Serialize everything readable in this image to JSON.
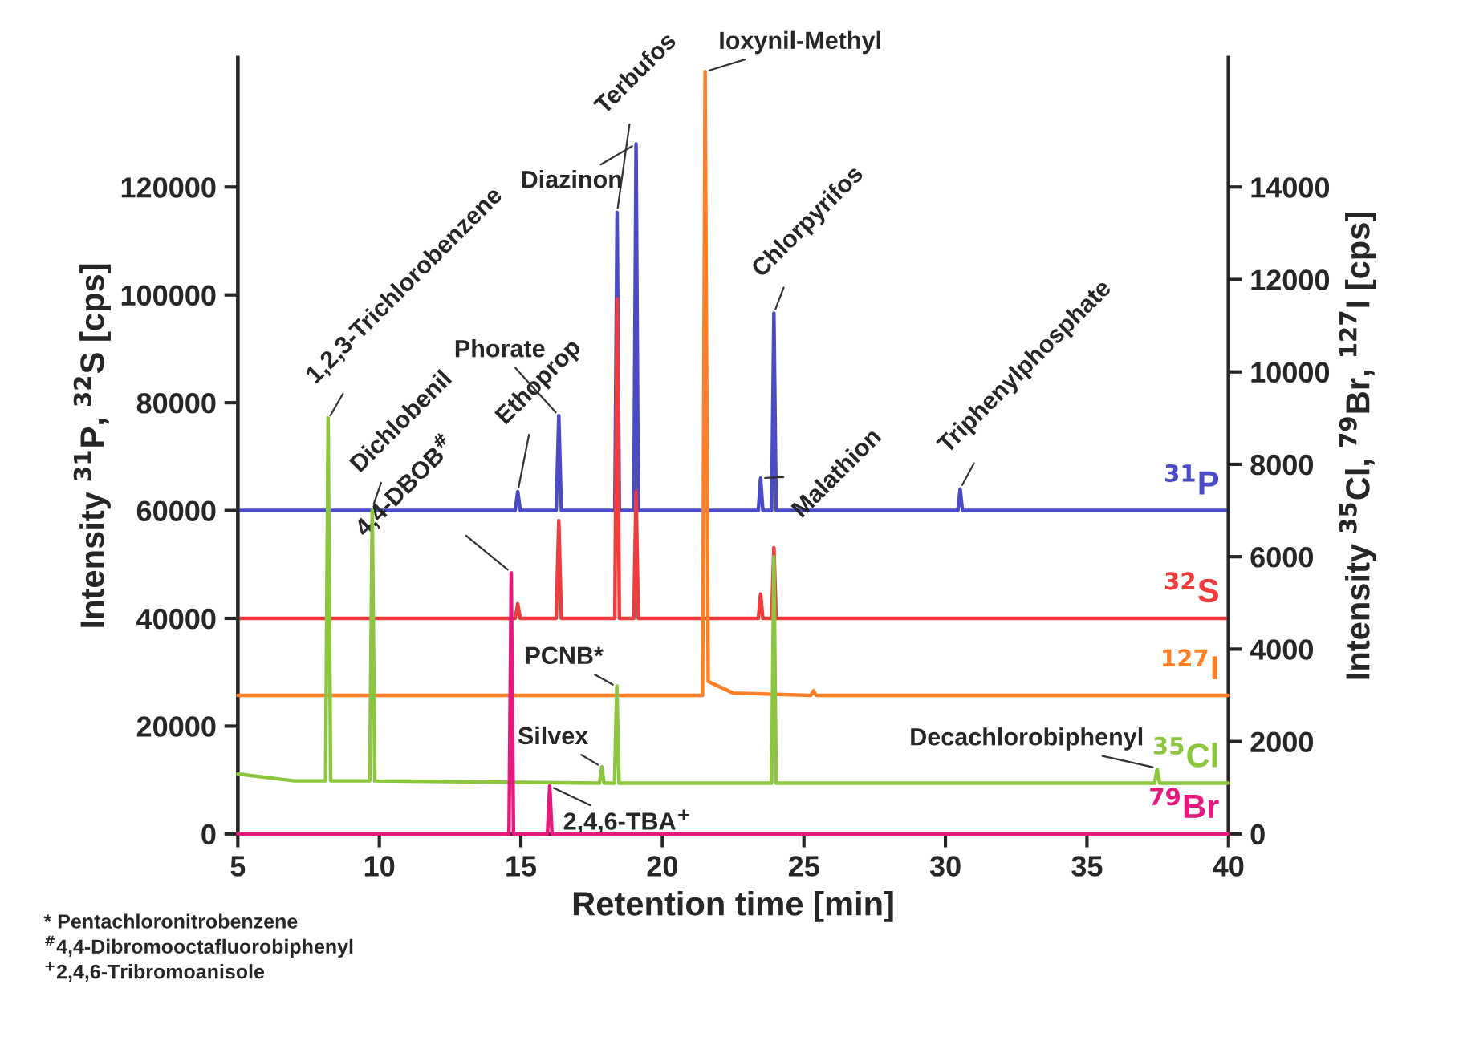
{
  "chart_data": {
    "type": "line",
    "xlabel": "Retention time [min]",
    "ylabel": "Intensity $^{31}$P, $^{32}$S [cps]",
    "y2label": "Intensity $^{35}$Cl, $^{79}$Br, $^{127}$I [cps]",
    "xlim": [
      5,
      40
    ],
    "xticks": [
      5,
      10,
      15,
      20,
      25,
      30,
      35,
      40
    ],
    "ylim": [
      0,
      144000
    ],
    "yticks": [
      0,
      20000,
      40000,
      60000,
      80000,
      100000,
      120000
    ],
    "y2lim": [
      0,
      16800
    ],
    "y2ticks": [
      0,
      2000,
      4000,
      6000,
      8000,
      10000,
      12000,
      14000
    ],
    "grid": false,
    "legend": false,
    "marker": "none",
    "line_style": "solid",
    "series": [
      {
        "name": "$^{31}$P",
        "color": "#4b4bc8",
        "x": [
          5,
          14.8,
          14.89,
          14.98,
          16.25,
          16.34,
          16.43,
          18.32,
          18.4,
          18.48,
          18.99,
          19.07,
          19.15,
          23.39,
          23.47,
          23.55,
          23.86,
          23.94,
          24.02,
          30.44,
          30.52,
          30.6,
          40
        ],
        "values": [
          60000,
          60000,
          63500,
          60000,
          60000,
          77600,
          60000,
          60000,
          115300,
          60000,
          60000,
          128000,
          60000,
          60000,
          66000,
          60000,
          60000,
          96600,
          60000,
          60000,
          64000,
          60000,
          60000
        ]
      },
      {
        "name": "$^{32}$S",
        "color": "#f03c3c",
        "x": [
          5,
          14.8,
          14.89,
          14.98,
          16.25,
          16.34,
          16.43,
          18.32,
          18.4,
          18.48,
          18.99,
          19.07,
          19.15,
          23.39,
          23.47,
          23.55,
          23.86,
          23.94,
          24.02,
          40
        ],
        "values": [
          40000,
          40000,
          42700,
          40000,
          40000,
          58100,
          40000,
          40000,
          99300,
          40000,
          40000,
          63500,
          40000,
          40000,
          44500,
          40000,
          40000,
          53100,
          40000,
          40000
        ]
      },
      {
        "name": "$^{127}$I",
        "color": "#ff7f27",
        "axis": "y2",
        "x": [
          5,
          21.42,
          21.51,
          21.62,
          22.5,
          25.25,
          25.34,
          25.43,
          40
        ],
        "values": [
          3000,
          3000,
          16500,
          3300,
          3050,
          3000,
          3100,
          3000,
          3000
        ]
      },
      {
        "name": "$^{35}$Cl",
        "color": "#8cc63f",
        "axis": "y2",
        "x": [
          5,
          7,
          8.1,
          8.19,
          8.28,
          9.66,
          9.75,
          9.84,
          17.78,
          17.86,
          17.94,
          18.31,
          18.39,
          18.47,
          23.86,
          23.94,
          24.02,
          37.39,
          37.48,
          37.57,
          40
        ],
        "values": [
          1300,
          1150,
          1150,
          9000,
          1150,
          1150,
          7000,
          1150,
          1100,
          1450,
          1100,
          1100,
          3200,
          1100,
          1100,
          6000,
          1100,
          1100,
          1400,
          1100,
          1100
        ]
      },
      {
        "name": "$^{79}$Br",
        "color": "#e6197f",
        "axis": "y2",
        "x": [
          5,
          14.58,
          14.66,
          14.74,
          15.94,
          16.02,
          16.1,
          40
        ],
        "values": [
          0,
          0,
          5650,
          0,
          0,
          1040,
          0,
          0
        ]
      }
    ],
    "annotations": [
      {
        "text": "1,2,3-Trichlorobenzene",
        "x": 8.19,
        "y": 76900
      },
      {
        "text": "Dichlobenil",
        "x": 9.75,
        "y": 60400
      },
      {
        "text": "Ethoprop",
        "x": 14.89,
        "y": 63500
      },
      {
        "text": "Phorate",
        "x": 16.34,
        "y": 77600
      },
      {
        "text": "Terbufos",
        "x": 18.4,
        "y": 115300
      },
      {
        "text": "Diazinon",
        "x": 19.07,
        "y": 128000
      },
      {
        "text": "Ioxynil-Methyl",
        "x": 21.51,
        "y": 141400
      },
      {
        "text": "Malathion",
        "x": 23.47,
        "y": 66000
      },
      {
        "text": "Chlorpyrifos",
        "x": 23.94,
        "y": 96600
      },
      {
        "text": "Triphenylphosphate",
        "x": 30.52,
        "y": 64000
      },
      {
        "text": "Silvex",
        "x": 17.86,
        "y": 12400
      },
      {
        "text": "PCNB*",
        "x": 18.39,
        "y": 27300
      },
      {
        "text": "Decachlorobiphenyl",
        "x": 37.48,
        "y": 12200
      },
      {
        "text": "4,4-DBOB$^{#}$",
        "x": 14.66,
        "y": 48500
      },
      {
        "text": "2,4,6-TBA$^{+}$",
        "x": 16.02,
        "y": 8900
      },
      "* Pentachloronitrobenzene",
      "$^{#}$4,4-Dibromooctafluorobiphenyl",
      "$^{+}$2,4,6-Tribromoanisole"
    ]
  }
}
